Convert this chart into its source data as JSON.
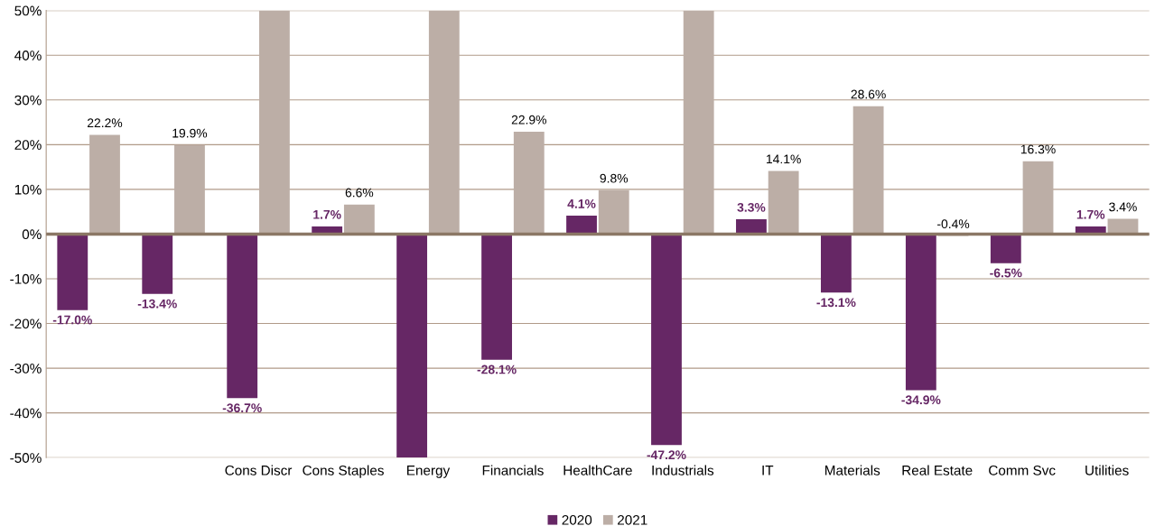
{
  "chart_data": {
    "type": "bar",
    "categories": [
      null,
      null,
      "Cons Discr",
      "Cons Staples",
      "Energy",
      "Financials",
      "HealthCare",
      "Industrials",
      "IT",
      "Materials",
      "Real Estate",
      "Comm Svc",
      "Utilities"
    ],
    "series": [
      {
        "name": "2020",
        "color": "#662765",
        "values": [
          -17.0,
          -13.4,
          -36.7,
          1.7,
          -50,
          -28.1,
          4.1,
          -47.2,
          3.3,
          -13.1,
          -34.9,
          -6.5,
          1.7
        ],
        "value_labels": [
          "-17.0%",
          "-13.4%",
          "-36.7%",
          "1.7%",
          null,
          "-28.1%",
          "4.1%",
          "-47.2%",
          "3.3%",
          "-13.1%",
          "-34.9%",
          "-6.5%",
          "1.7%"
        ]
      },
      {
        "name": "2021",
        "color": "#bcaea6",
        "values": [
          22.2,
          19.9,
          50,
          6.6,
          50,
          22.9,
          9.8,
          50,
          14.1,
          28.6,
          -0.4,
          16.3,
          3.4
        ],
        "value_labels": [
          "22.2%",
          "19.9%",
          null,
          "6.6%",
          null,
          "22.9%",
          "9.8%",
          null,
          "14.1%",
          "28.6%",
          "-0.4%",
          "16.3%",
          "3.4%"
        ]
      }
    ],
    "ylim": [
      -50,
      50
    ],
    "yticks": [
      {
        "value": -50,
        "label": "-50%"
      },
      {
        "value": -40,
        "label": "-40%"
      },
      {
        "value": -30,
        "label": "-30%"
      },
      {
        "value": -20,
        "label": "-20%"
      },
      {
        "value": -10,
        "label": "-10%"
      },
      {
        "value": 0,
        "label": "0%"
      },
      {
        "value": 10,
        "label": "10%"
      },
      {
        "value": 20,
        "label": "20%"
      },
      {
        "value": 30,
        "label": "30%"
      },
      {
        "value": 40,
        "label": "40%"
      },
      {
        "value": 50,
        "label": "50%"
      }
    ],
    "grid": "y",
    "legend": "bottom"
  }
}
